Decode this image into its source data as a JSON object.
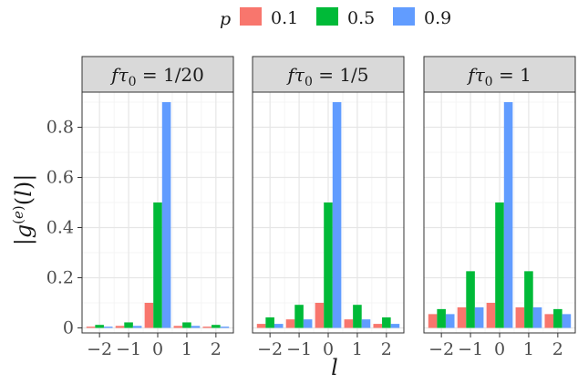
{
  "chart_data": {
    "type": "bar",
    "legend": {
      "title": "p",
      "position": "top",
      "entries": [
        {
          "label": "0.1",
          "color": "#F8766D"
        },
        {
          "label": "0.5",
          "color": "#00BA38"
        },
        {
          "label": "0.9",
          "color": "#619CFF"
        }
      ]
    },
    "xlabel": "l",
    "ylabel": "|g(e)(l)|",
    "ylim": [
      -0.02,
      0.94
    ],
    "yticks": [
      0,
      0.2,
      0.4,
      0.6,
      0.8
    ],
    "ytick_labels": [
      "0",
      "0.2",
      "0.4",
      "0.6",
      "0.8"
    ],
    "categories": [
      -2,
      -1,
      0,
      1,
      2
    ],
    "xtick_labels": [
      "−2",
      "−1",
      "0",
      "1",
      "2"
    ],
    "grid": true,
    "panels": [
      {
        "strip": "fτ0 = 1/20",
        "series": [
          {
            "name": "0.1",
            "values": [
              0.005,
              0.008,
              0.1,
              0.008,
              0.005
            ]
          },
          {
            "name": "0.5",
            "values": [
              0.012,
              0.022,
              0.5,
              0.022,
              0.012
            ]
          },
          {
            "name": "0.9",
            "values": [
              0.005,
              0.008,
              0.9,
              0.008,
              0.005
            ]
          }
        ]
      },
      {
        "strip": "fτ0 = 1/5",
        "series": [
          {
            "name": "0.1",
            "values": [
              0.016,
              0.034,
              0.1,
              0.034,
              0.016
            ]
          },
          {
            "name": "0.5",
            "values": [
              0.042,
              0.092,
              0.5,
              0.092,
              0.042
            ]
          },
          {
            "name": "0.9",
            "values": [
              0.016,
              0.034,
              0.9,
              0.034,
              0.016
            ]
          }
        ]
      },
      {
        "strip": "fτ0 = 1",
        "series": [
          {
            "name": "0.1",
            "values": [
              0.055,
              0.082,
              0.1,
              0.082,
              0.055
            ]
          },
          {
            "name": "0.5",
            "values": [
              0.075,
              0.226,
              0.5,
              0.226,
              0.075
            ]
          },
          {
            "name": "0.9",
            "values": [
              0.055,
              0.082,
              0.9,
              0.082,
              0.055
            ]
          }
        ]
      }
    ]
  }
}
